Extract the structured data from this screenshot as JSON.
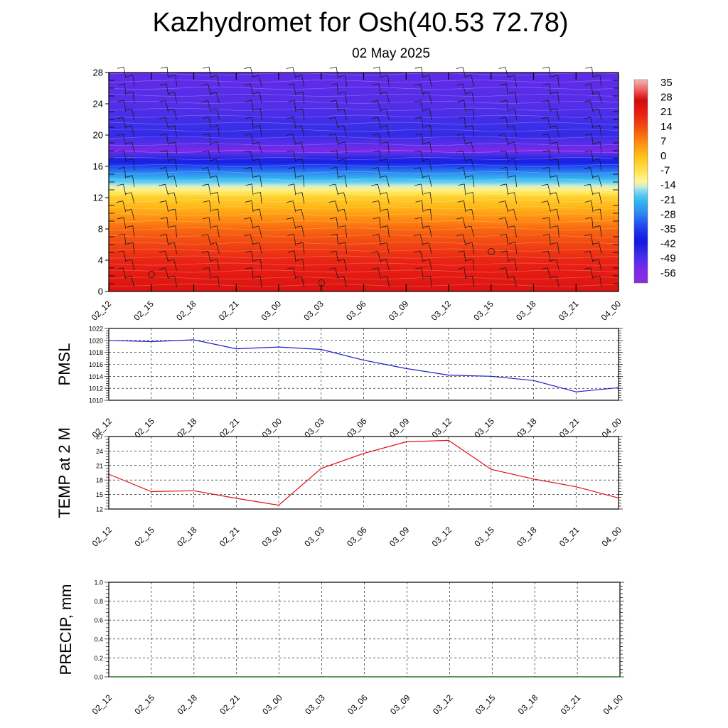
{
  "title": "Kazhydromet for Osh(40.53 72.78)",
  "subtitle": "02 May 2025",
  "time_labels": [
    "02_12",
    "02_15",
    "02_18",
    "02_21",
    "03_00",
    "03_03",
    "03_06",
    "03_09",
    "03_12",
    "03_15",
    "03_18",
    "03_21",
    "04_00"
  ],
  "chart_data": [
    {
      "type": "heatmap",
      "title": "Kazhydromet for Osh(40.53 72.78)",
      "subtitle": "02 May 2025",
      "x": [
        "02_12",
        "02_15",
        "02_18",
        "02_21",
        "03_00",
        "03_03",
        "03_06",
        "03_09",
        "03_12",
        "03_15",
        "03_18",
        "03_21",
        "04_00"
      ],
      "y_ticks": [
        0,
        4,
        8,
        12,
        16,
        20,
        24,
        28
      ],
      "ylim": [
        0,
        28
      ],
      "colorbar_labels": [
        35,
        28,
        21,
        14,
        7,
        0,
        -7,
        -14,
        -21,
        -28,
        -35,
        -42,
        -49,
        -56
      ],
      "colorbar_range": [
        -63,
        38
      ],
      "temperature_profile": {
        "heights": [
          0,
          4,
          8,
          12,
          16,
          18,
          20,
          24,
          28
        ],
        "values": [
          25,
          20,
          11,
          -3,
          -35,
          -56,
          -48,
          -52,
          -53
        ]
      },
      "overlays": "wind barbs and temperature contours"
    },
    {
      "type": "line",
      "ylabel": "PMSL",
      "x": [
        "02_12",
        "02_15",
        "02_18",
        "02_21",
        "03_00",
        "03_03",
        "03_06",
        "03_09",
        "03_12",
        "03_15",
        "03_18",
        "03_21",
        "04_00"
      ],
      "ylim": [
        1010,
        1022
      ],
      "y_ticks": [
        1010,
        1012,
        1014,
        1016,
        1018,
        1020,
        1022
      ],
      "values": [
        1020.0,
        1019.8,
        1020.1,
        1018.6,
        1018.9,
        1018.5,
        1016.7,
        1015.3,
        1014.2,
        1014.0,
        1013.3,
        1011.4,
        1012.1
      ],
      "line_color": "#1f1fd0",
      "grid": true
    },
    {
      "type": "line",
      "ylabel": "TEMP at 2 M",
      "x": [
        "02_12",
        "02_15",
        "02_18",
        "02_21",
        "03_00",
        "03_03",
        "03_06",
        "03_09",
        "03_12",
        "03_15",
        "03_18",
        "03_21",
        "04_00"
      ],
      "ylim": [
        12,
        27
      ],
      "y_ticks": [
        12,
        15,
        18,
        21,
        24,
        27
      ],
      "values": [
        19.2,
        15.6,
        15.8,
        14.2,
        12.8,
        20.4,
        23.5,
        25.9,
        26.2,
        20.2,
        18.2,
        16.6,
        14.3
      ],
      "line_color": "#e01010",
      "grid": true
    },
    {
      "type": "line",
      "ylabel": "PRECIP, mm",
      "x": [
        "02_12",
        "02_15",
        "02_18",
        "02_21",
        "03_00",
        "03_03",
        "03_06",
        "03_09",
        "03_12",
        "03_15",
        "03_18",
        "03_21",
        "04_00"
      ],
      "ylim": [
        0,
        1.0
      ],
      "y_ticks": [
        "0.0",
        "0.2",
        "0.4",
        "0.6",
        "0.8",
        "1.0"
      ],
      "values": [
        0,
        0,
        0,
        0,
        0,
        0,
        0,
        0,
        0,
        0,
        0,
        0,
        0
      ],
      "line_color": "#1a7a1a",
      "grid": true
    }
  ]
}
